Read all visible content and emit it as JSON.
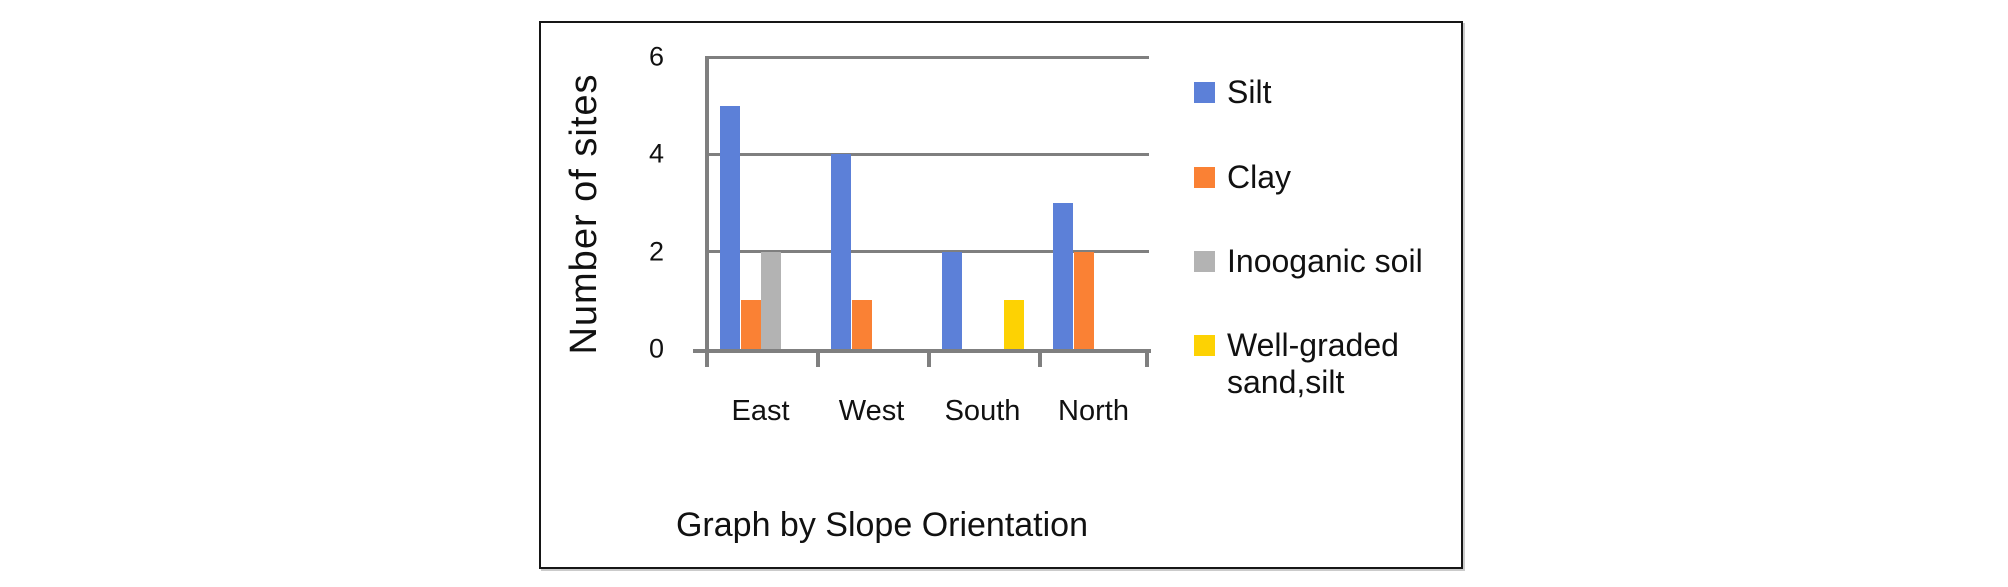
{
  "chart_data": {
    "type": "bar",
    "title": "Graph by Slope Orientation",
    "ylabel": "Number of sites",
    "categories": [
      "East",
      "West",
      "South",
      "North"
    ],
    "series": [
      {
        "name": "Silt",
        "color": "#5C80D8",
        "values": [
          5,
          4,
          2,
          3
        ]
      },
      {
        "name": "Clay",
        "color": "#FA8134",
        "values": [
          1,
          1,
          0,
          2
        ]
      },
      {
        "name": "Inooganic soil",
        "color": "#B3B3B3",
        "values": [
          2,
          0,
          0,
          0
        ]
      },
      {
        "name": "Well-graded sand,silt",
        "color": "#FDD203",
        "values": [
          0,
          0,
          1,
          0
        ]
      }
    ],
    "ylim": [
      0,
      6
    ],
    "yticks": [
      0,
      2,
      4,
      6
    ],
    "grid": true,
    "legend_position": "right",
    "axis_color": "#7F7F7F",
    "border_color": "#161616"
  }
}
